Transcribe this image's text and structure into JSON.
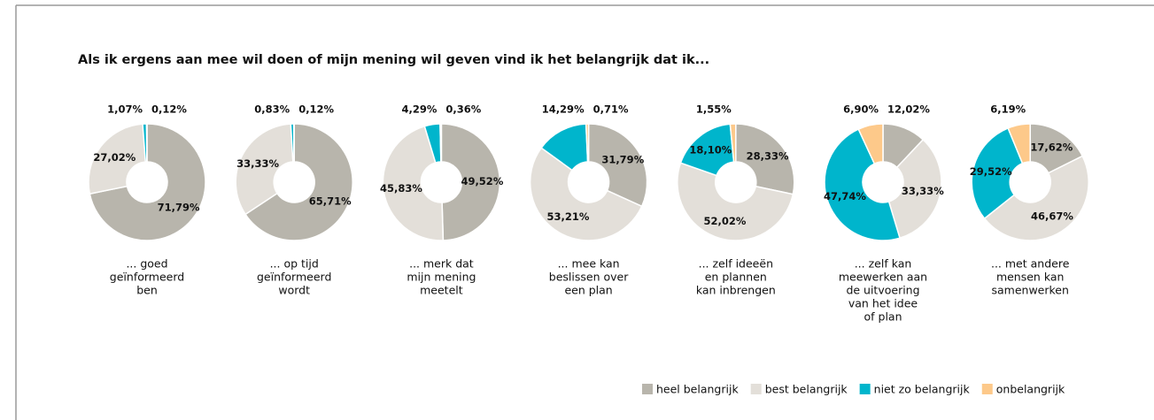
{
  "chart_data": {
    "type": "donut",
    "title": "Als ik ergens aan mee wil doen of mijn mening wil geven vind ik het belangrijk dat ik...",
    "categories": [
      [
        "... goed",
        "geïnformeerd",
        "ben"
      ],
      [
        "... op tijd",
        "geïnformeerd",
        "wordt"
      ],
      [
        "... merk dat",
        "mijn mening",
        "meetelt"
      ],
      [
        "... mee kan",
        "beslissen over",
        "een plan"
      ],
      [
        "... zelf ideeën",
        "en plannen",
        "kan inbrengen"
      ],
      [
        "... zelf kan",
        "meewerken aan",
        "de uitvoering",
        "van het idee",
        "of plan"
      ],
      [
        "... met andere",
        "mensen kan",
        "samenwerken"
      ]
    ],
    "series": [
      {
        "name": "heel belangrijk",
        "color": "#b8b5ac",
        "values": [
          71.79,
          65.71,
          49.52,
          31.79,
          28.33,
          12.02,
          17.62
        ],
        "value_labels": [
          "71,79%",
          "65,71%",
          "49,52%",
          "31,79%",
          "28,33%",
          "12,02%",
          "17,62%"
        ]
      },
      {
        "name": "best belangrijk",
        "color": "#e3dfd9",
        "values": [
          27.02,
          33.33,
          45.83,
          53.21,
          52.02,
          33.33,
          46.67
        ],
        "value_labels": [
          "27,02%",
          "33,33%",
          "45,83%",
          "53,21%",
          "52,02%",
          "33,33%",
          "46,67%"
        ]
      },
      {
        "name": "niet zo belangrijk",
        "color": "#00b5cc",
        "values": [
          1.07,
          0.83,
          4.29,
          14.29,
          18.1,
          47.74,
          29.52
        ],
        "value_labels": [
          "1,07%",
          "0,83%",
          "4,29%",
          "14,29%",
          "18,10%",
          "47,74%",
          "29,52%"
        ]
      },
      {
        "name": "onbelangrijk",
        "color": "#fdc98a",
        "values": [
          0.12,
          0.12,
          0.36,
          0.71,
          1.55,
          6.9,
          6.19
        ],
        "value_labels": [
          "0,12%",
          "0,12%",
          "0,36%",
          "0,71%",
          "1,55%",
          "6,90%",
          "6,19%"
        ]
      }
    ]
  }
}
